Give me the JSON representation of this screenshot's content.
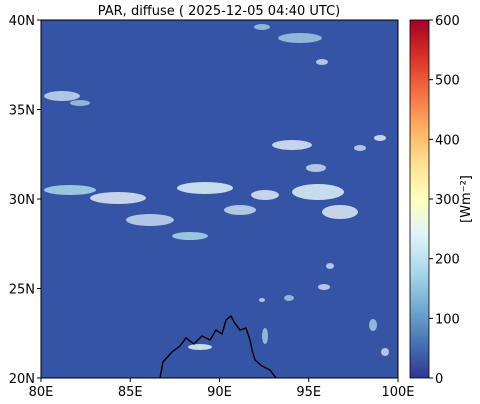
{
  "title": "PAR, diffuse ( 2025-12-05 04:40 UTC)",
  "map": {
    "lon_range": [
      80,
      100
    ],
    "lat_range": [
      20,
      40
    ],
    "x_ticks": [
      {
        "value": 80,
        "label": "80E"
      },
      {
        "value": 85,
        "label": "85E"
      },
      {
        "value": 90,
        "label": "90E"
      },
      {
        "value": 95,
        "label": "95E"
      },
      {
        "value": 100,
        "label": "100E"
      }
    ],
    "y_ticks": [
      {
        "value": 20,
        "label": "20N"
      },
      {
        "value": 25,
        "label": "25N"
      },
      {
        "value": 30,
        "label": "30N"
      },
      {
        "value": 35,
        "label": "35N"
      },
      {
        "value": 40,
        "label": "40N"
      }
    ],
    "background_color": "#3654a5",
    "coastline_color": "#000000"
  },
  "colorbar": {
    "label": "[Wm⁻²]",
    "min": 0,
    "max": 600,
    "ticks": [
      {
        "value": 0,
        "label": "0"
      },
      {
        "value": 100,
        "label": "100"
      },
      {
        "value": 200,
        "label": "200"
      },
      {
        "value": 300,
        "label": "300"
      },
      {
        "value": 400,
        "label": "400"
      },
      {
        "value": 500,
        "label": "500"
      },
      {
        "value": 600,
        "label": "600"
      }
    ],
    "colormap": "RdYlBu_r",
    "colors": [
      "#313695",
      "#4575b4",
      "#74add1",
      "#abd9e9",
      "#e0f3f8",
      "#ffffbf",
      "#fee090",
      "#fdae61",
      "#f46d43",
      "#d73027",
      "#a50026"
    ]
  }
}
